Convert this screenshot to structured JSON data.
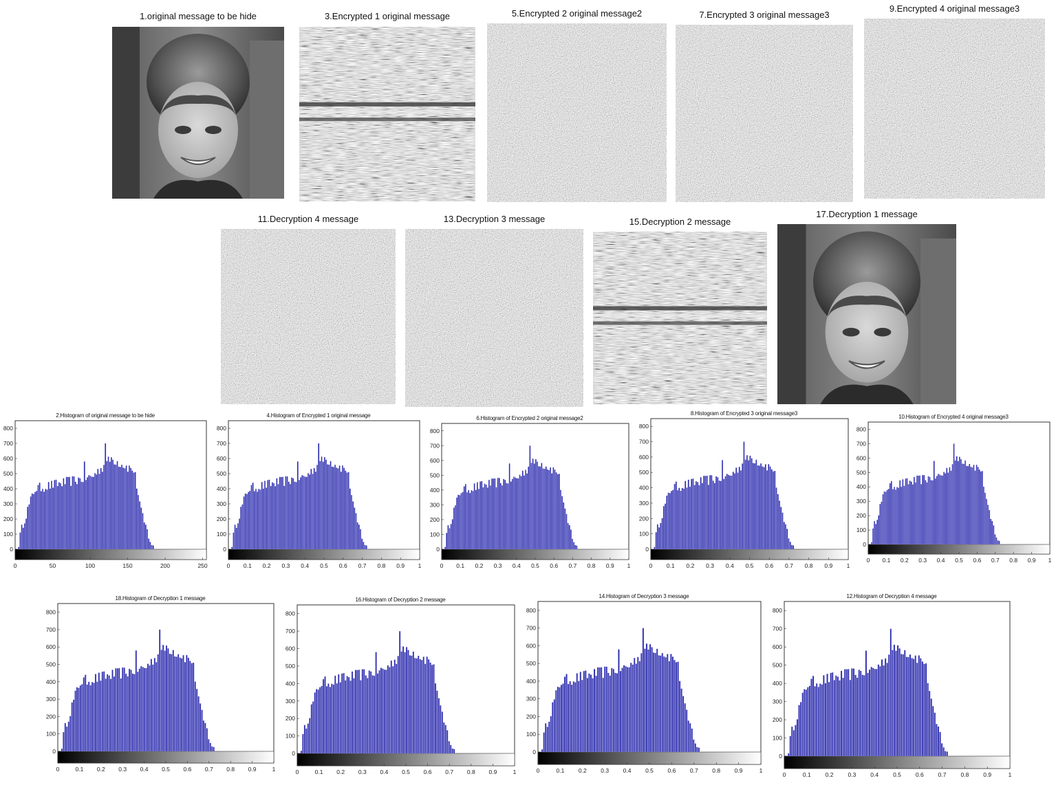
{
  "panels": [
    {
      "title": "1.original message to be hide",
      "kind": "face"
    },
    {
      "title": "3.Encrypted 1 original message",
      "kind": "stripes"
    },
    {
      "title": "5.Encrypted 2 original message2",
      "kind": "noise"
    },
    {
      "title": "7.Encrypted 3 original message3",
      "kind": "noise"
    },
    {
      "title": "9.Encrypted 4 original message3",
      "kind": "noise"
    },
    {
      "title": "11.Decryption 4 message",
      "kind": "noise"
    },
    {
      "title": "13.Decryption 3 message",
      "kind": "noise"
    },
    {
      "title": "15.Decryption 2 message",
      "kind": "stripes"
    },
    {
      "title": "17.Decryption 1 message",
      "kind": "face"
    }
  ],
  "colors": {
    "bar": "#2f2fae",
    "bar_edge": "#e6e6ff",
    "axis": "#333333"
  },
  "chart_data": [
    {
      "type": "bar",
      "title": "2.Histogram of original message to be hide",
      "xlim": [
        0,
        255
      ],
      "ylim": [
        0,
        850
      ],
      "xticks": [
        "0",
        "50",
        "100",
        "150",
        "200",
        "250"
      ],
      "yticks": [
        "0",
        "100",
        "200",
        "300",
        "400",
        "500",
        "600",
        "700",
        "800"
      ],
      "colorbar": "grayscale",
      "profile": "face-histogram",
      "peak": 700
    },
    {
      "type": "bar",
      "title": "4.Histogram of Encrypted 1 original message",
      "xlim": [
        0,
        1
      ],
      "ylim": [
        0,
        850
      ],
      "xticks": [
        "0",
        "0.1",
        "0.2",
        "0.3",
        "0.4",
        "0.5",
        "0.6",
        "0.7",
        "0.8",
        "0.9",
        "1"
      ],
      "yticks": [
        "0",
        "100",
        "200",
        "300",
        "400",
        "500",
        "600",
        "700",
        "800"
      ],
      "colorbar": "grayscale",
      "profile": "face-histogram",
      "peak": 700
    },
    {
      "type": "bar",
      "title": "6.Histogram of Encrypted 2 original message2",
      "xlim": [
        0,
        1
      ],
      "ylim": [
        0,
        850
      ],
      "xticks": [
        "0",
        "0.1",
        "0.2",
        "0.3",
        "0.4",
        "0.5",
        "0.6",
        "0.7",
        "0.8",
        "0.9",
        "1"
      ],
      "yticks": [
        "0",
        "100",
        "200",
        "300",
        "400",
        "500",
        "600",
        "700",
        "800"
      ],
      "colorbar": "grayscale",
      "profile": "face-histogram",
      "peak": 700
    },
    {
      "type": "bar",
      "title": "8.Histogram of Encrypted 3 original message3",
      "xlim": [
        0,
        1
      ],
      "ylim": [
        0,
        850
      ],
      "xticks": [
        "0",
        "0.1",
        "0.2",
        "0.3",
        "0.4",
        "0.5",
        "0.6",
        "0.7",
        "0.8",
        "0.9",
        "1"
      ],
      "yticks": [
        "0",
        "100",
        "200",
        "300",
        "400",
        "500",
        "600",
        "700",
        "800"
      ],
      "colorbar": "grayscale",
      "profile": "face-histogram",
      "peak": 700
    },
    {
      "type": "bar",
      "title": "10.Histogram of Encrypted 4 original message3",
      "xlim": [
        0,
        1
      ],
      "ylim": [
        0,
        850
      ],
      "xticks": [
        "0",
        "0.1",
        "0.2",
        "0.3",
        "0.4",
        "0.5",
        "0.6",
        "0.7",
        "0.8",
        "0.9",
        "1"
      ],
      "yticks": [
        "0",
        "100",
        "200",
        "300",
        "400",
        "500",
        "600",
        "700",
        "800"
      ],
      "colorbar": "grayscale",
      "profile": "face-histogram",
      "peak": 700
    },
    {
      "type": "bar",
      "title": "18.Histogram of Decryption 1 message",
      "xlim": [
        0,
        1
      ],
      "ylim": [
        0,
        850
      ],
      "xticks": [
        "0",
        "0.1",
        "0.2",
        "0.3",
        "0.4",
        "0.5",
        "0.6",
        "0.7",
        "0.8",
        "0.9",
        "1"
      ],
      "yticks": [
        "0",
        "100",
        "200",
        "300",
        "400",
        "500",
        "600",
        "700",
        "800"
      ],
      "colorbar": "grayscale",
      "profile": "face-histogram",
      "peak": 700
    },
    {
      "type": "bar",
      "title": "16.Histogram of Decryption 2 message",
      "xlim": [
        0,
        1
      ],
      "ylim": [
        0,
        850
      ],
      "xticks": [
        "0",
        "0.1",
        "0.2",
        "0.3",
        "0.4",
        "0.5",
        "0.6",
        "0.7",
        "0.8",
        "0.9",
        "1"
      ],
      "yticks": [
        "0",
        "100",
        "200",
        "300",
        "400",
        "500",
        "600",
        "700",
        "800"
      ],
      "colorbar": "grayscale",
      "profile": "face-histogram",
      "peak": 700
    },
    {
      "type": "bar",
      "title": "14.Histogram of Decryption 3 message",
      "xlim": [
        0,
        1
      ],
      "ylim": [
        0,
        850
      ],
      "xticks": [
        "0",
        "0.1",
        "0.2",
        "0.3",
        "0.4",
        "0.5",
        "0.6",
        "0.7",
        "0.8",
        "0.9",
        "1"
      ],
      "yticks": [
        "0",
        "100",
        "200",
        "300",
        "400",
        "500",
        "600",
        "700",
        "800"
      ],
      "colorbar": "grayscale",
      "profile": "face-histogram",
      "peak": 700
    },
    {
      "type": "bar",
      "title": "12.Histogram of Decryption 4 message",
      "xlim": [
        0,
        1
      ],
      "ylim": [
        0,
        850
      ],
      "xticks": [
        "0",
        "0.1",
        "0.2",
        "0.3",
        "0.4",
        "0.5",
        "0.6",
        "0.7",
        "0.8",
        "0.9",
        "1"
      ],
      "yticks": [
        "0",
        "100",
        "200",
        "300",
        "400",
        "500",
        "600",
        "700",
        "800"
      ],
      "colorbar": "grayscale",
      "profile": "face-histogram",
      "peak": 700
    }
  ]
}
